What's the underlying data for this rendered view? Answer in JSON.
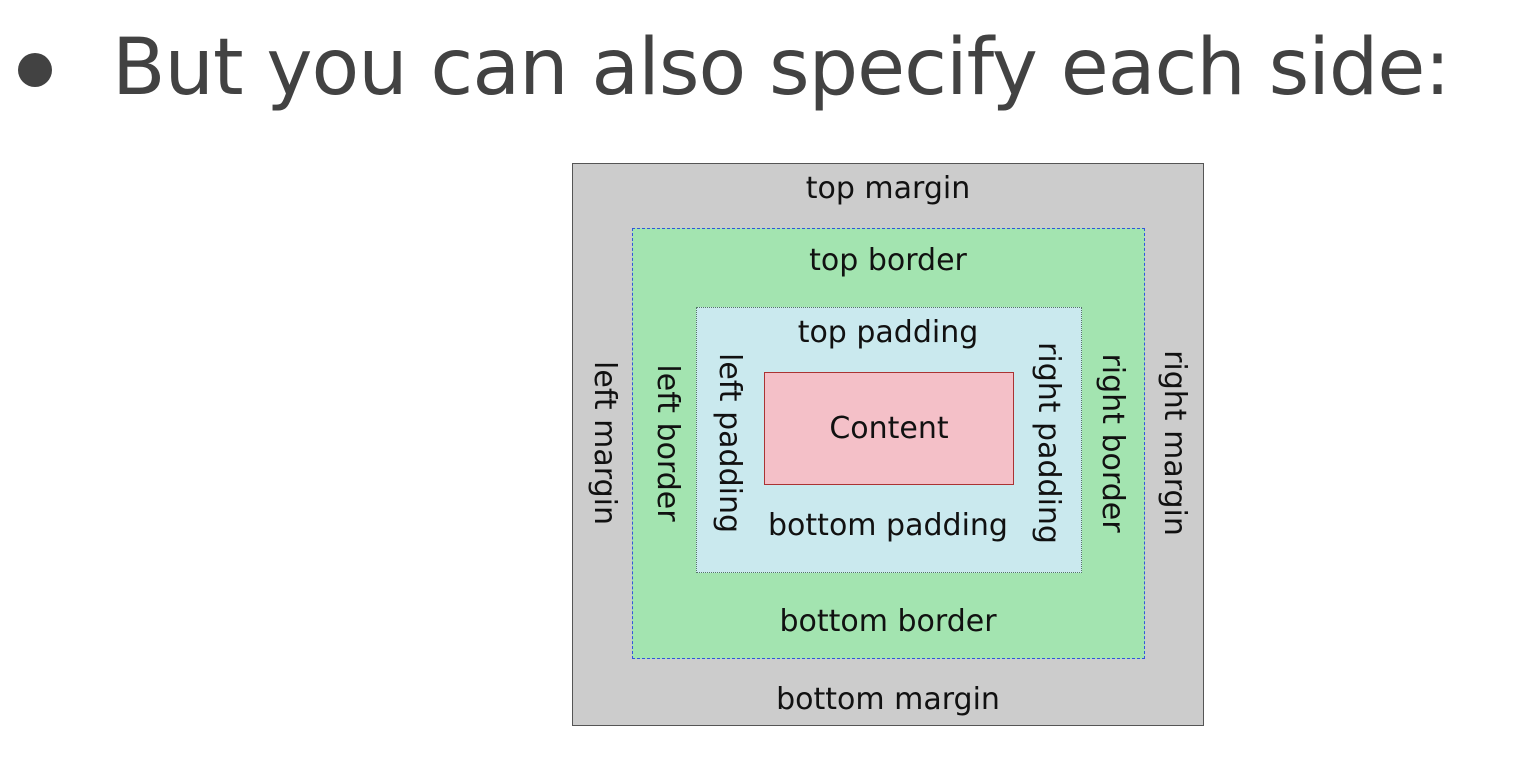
{
  "slide": {
    "bullet_text": "But you can also specify each side:"
  },
  "box_model": {
    "colors": {
      "margin": "#cccccc",
      "border": "#a3e4b0",
      "padding": "#cae9ee",
      "content": "#f4c0c8"
    },
    "margin": {
      "top": "top margin",
      "bottom": "bottom margin",
      "left": "left margin",
      "right": "right margin"
    },
    "border": {
      "top": "top border",
      "bottom": "bottom border",
      "left": "left border",
      "right": "right border"
    },
    "padding": {
      "top": "top padding",
      "bottom": "bottom padding",
      "left": "left padding",
      "right": "right padding"
    },
    "content": "Content"
  }
}
